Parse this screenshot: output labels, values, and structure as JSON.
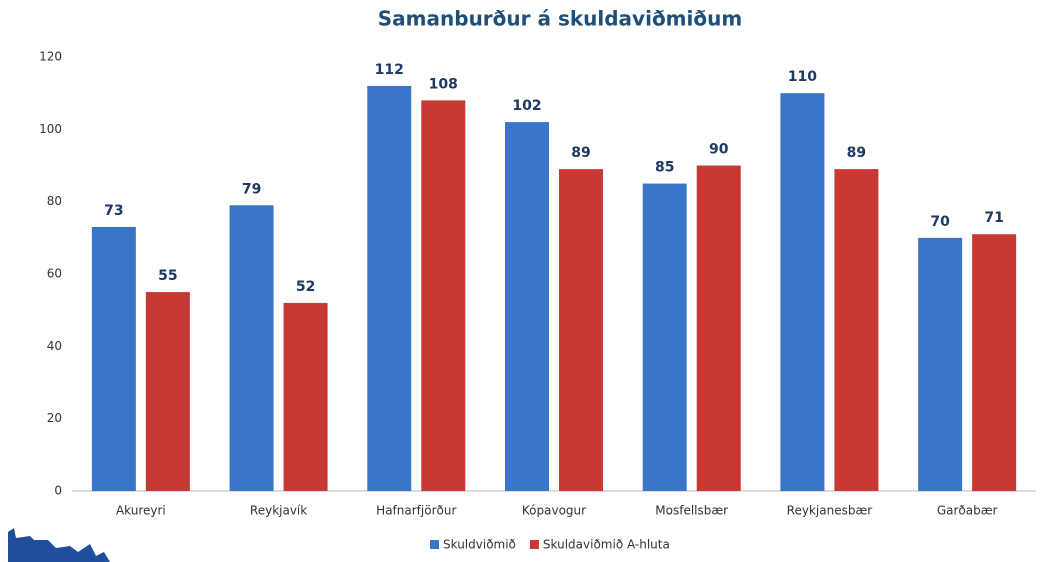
{
  "chart_data": {
    "type": "bar",
    "title": "Samanburður á skuldaviðmiðum",
    "categories": [
      "Akureyri",
      "Reykjavík",
      "Hafnarfjörður",
      "Kópavogur",
      "Mosfellsbær",
      "Reykjanesbær",
      "Garðabær"
    ],
    "series": [
      {
        "name": "Skuldviðmið",
        "color": "#3a76c8",
        "values": [
          73,
          79,
          112,
          102,
          85,
          110,
          70
        ]
      },
      {
        "name": "Skuldaviðmið A-hluta",
        "color": "#c83935",
        "values": [
          55,
          52,
          108,
          89,
          90,
          89,
          71
        ]
      }
    ],
    "ylim": [
      0,
      120
    ],
    "yticks": [
      0,
      20,
      40,
      60,
      80,
      100,
      120
    ],
    "grid": false
  }
}
